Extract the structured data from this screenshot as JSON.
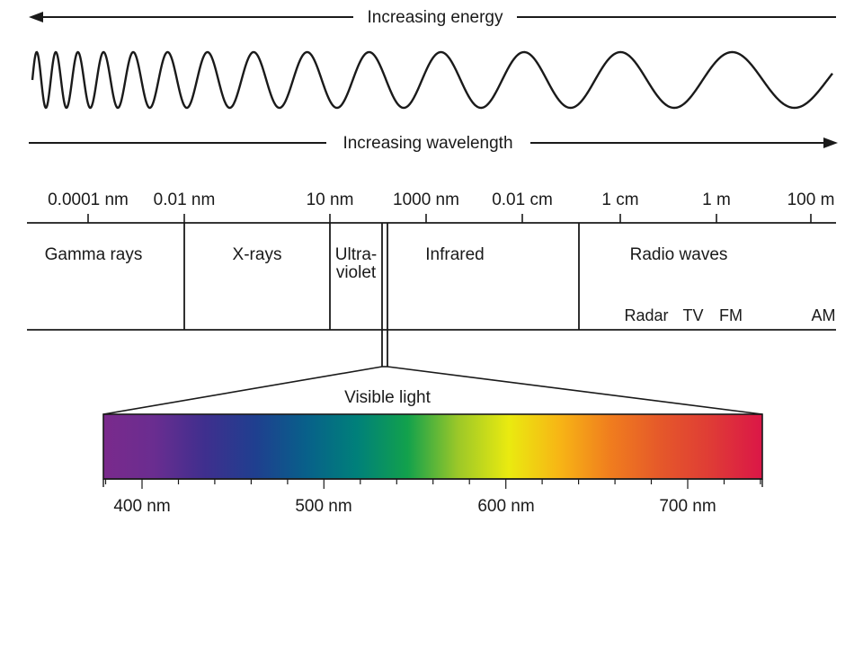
{
  "header": {
    "energy_label": "Increasing energy",
    "wavelength_label": "Increasing wavelength"
  },
  "wavelength_scale": {
    "ticks": [
      "0.0001 nm",
      "0.01 nm",
      "10 nm",
      "1000 nm",
      "0.01 cm",
      "1 cm",
      "1 m",
      "100 m"
    ]
  },
  "bands": [
    {
      "key": "gamma",
      "label": "Gamma rays"
    },
    {
      "key": "xrays",
      "label": "X-rays"
    },
    {
      "key": "uv",
      "label_line1": "Ultra-",
      "label_line2": "violet"
    },
    {
      "key": "infrared",
      "label": "Infrared"
    },
    {
      "key": "radio",
      "label": "Radio waves"
    }
  ],
  "radio_subbands": [
    "Radar",
    "TV",
    "FM",
    "AM"
  ],
  "visible": {
    "label": "Visible light",
    "ticks": [
      "400 nm",
      "500 nm",
      "600 nm",
      "700 nm"
    ],
    "gradient_colors": [
      "#7a2a8c",
      "#6a2d90",
      "#3f2f8e",
      "#1f3f8f",
      "#08608a",
      "#00807a",
      "#12a14c",
      "#9cc828",
      "#eaea10",
      "#f7b515",
      "#f07d1e",
      "#e5582a",
      "#df3b36",
      "#db1647"
    ]
  },
  "colors": {
    "ink": "#1a1a1a",
    "background": "#ffffff"
  }
}
